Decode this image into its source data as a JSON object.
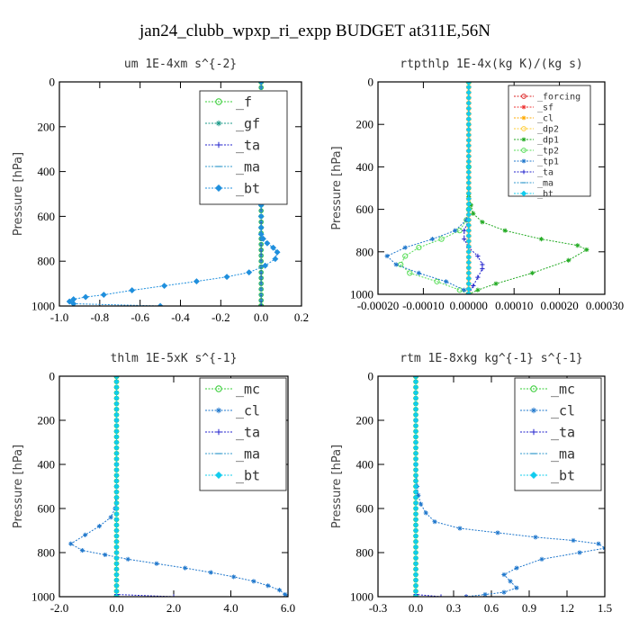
{
  "figure_title": "jan24_clubb_wpxp_ri_expp  BUDGET at311E,56N",
  "chart_data": [
    {
      "type": "line",
      "title": "um  1E-4xm s^{-2}",
      "ylabel": "Pressure [hPa]",
      "xlim": [
        -1.0,
        0.2
      ],
      "ylim": [
        1000,
        0
      ],
      "xticks": [
        -1.0,
        -0.8,
        -0.6,
        -0.4,
        -0.2,
        0.0,
        0.2
      ],
      "xtick_labels": [
        "-1.0",
        "-0.8",
        "-0.6",
        "-0.4",
        "-0.2",
        "0.0",
        "0.2"
      ],
      "yticks": [
        0,
        200,
        400,
        600,
        800,
        1000
      ],
      "ytick_labels": [
        "0",
        "200",
        "400",
        "600",
        "800",
        "1000"
      ],
      "legend_position": "top-right",
      "series": [
        {
          "name": "_f",
          "color": "#33cc33",
          "marker": "circle",
          "x": [
            0.0,
            0.0
          ],
          "y": [
            0,
            1000
          ]
        },
        {
          "name": "_gf",
          "color": "#1a9988",
          "marker": "star",
          "x": [
            0.0,
            0.0
          ],
          "y": [
            0,
            1000
          ]
        },
        {
          "name": "_ta",
          "color": "#2222cc",
          "marker": "plus",
          "x": [
            0.0,
            0.0
          ],
          "y": [
            0,
            1000
          ]
        },
        {
          "name": "_ma",
          "color": "#3399cc",
          "marker": "dash",
          "x": [
            0.0,
            0.0
          ],
          "y": [
            0,
            1000
          ]
        },
        {
          "name": "_bt",
          "color": "#1f8fdd",
          "marker": "diamond",
          "x": [
            0.0,
            0.0,
            0.0,
            0.0,
            0.0,
            0.0,
            0.0,
            0.0,
            0.0,
            0.0,
            0.01,
            0.03,
            0.06,
            0.08,
            0.07,
            0.02,
            -0.06,
            -0.17,
            -0.32,
            -0.48,
            -0.64,
            -0.78,
            -0.87,
            -0.93,
            -0.95,
            -0.93,
            -0.5
          ],
          "y": [
            0,
            100,
            200,
            300,
            400,
            500,
            550,
            600,
            650,
            680,
            700,
            720,
            740,
            760,
            790,
            820,
            850,
            870,
            890,
            910,
            930,
            950,
            960,
            970,
            980,
            990,
            1000
          ]
        }
      ]
    },
    {
      "type": "line",
      "title": "rtpthlp  1E-4x(kg K)/(kg s)",
      "ylabel": "Pressure [hPa]",
      "xlim": [
        -0.0002,
        0.0003
      ],
      "ylim": [
        1000,
        0
      ],
      "xticks": [
        -0.0002,
        -0.0001,
        0.0,
        0.0001,
        0.0002,
        0.0003
      ],
      "xtick_labels": [
        "-0.00020",
        "-0.00010",
        "0.00000",
        "0.00010",
        "0.00020",
        "0.00030"
      ],
      "yticks": [
        0,
        200,
        400,
        600,
        800,
        1000
      ],
      "ytick_labels": [
        "0",
        "200",
        "400",
        "600",
        "800",
        "1000"
      ],
      "legend_position": "top-right",
      "series": [
        {
          "name": "_forcing",
          "color": "#dd2222",
          "marker": "circle",
          "x": [
            0.0,
            0.0
          ],
          "y": [
            0,
            1000
          ]
        },
        {
          "name": "_sf",
          "color": "#ee3333",
          "marker": "star",
          "x": [
            0.0,
            0.0
          ],
          "y": [
            0,
            1000
          ]
        },
        {
          "name": "_cl",
          "color": "#ffaa00",
          "marker": "star",
          "x": [
            0.0,
            0.0
          ],
          "y": [
            0,
            1000
          ]
        },
        {
          "name": "_dp2",
          "color": "#ffcc33",
          "marker": "circle",
          "x": [
            0.0,
            0.0
          ],
          "y": [
            0,
            1000
          ]
        },
        {
          "name": "_dp1",
          "color": "#22aa22",
          "marker": "star",
          "x": [
            0.0,
            0.0,
            0.0,
            0.0,
            0.0,
            5e-06,
            1e-05,
            3e-05,
            8e-05,
            0.00016,
            0.00024,
            0.00026,
            0.00022,
            0.00014,
            6e-05,
            2e-05,
            0.0
          ],
          "y": [
            0,
            200,
            400,
            500,
            540,
            580,
            620,
            660,
            700,
            740,
            770,
            790,
            840,
            900,
            950,
            980,
            1000
          ]
        },
        {
          "name": "_tp2",
          "color": "#55dd55",
          "marker": "circle",
          "x": [
            0.0,
            0.0,
            0.0,
            -5e-06,
            -2e-05,
            -6e-05,
            -0.00011,
            -0.00014,
            -0.00015,
            -0.00013,
            -7e-05,
            -2e-05,
            0.0
          ],
          "y": [
            0,
            400,
            600,
            650,
            700,
            740,
            780,
            820,
            860,
            900,
            940,
            980,
            1000
          ]
        },
        {
          "name": "_tp1",
          "color": "#1f77cc",
          "marker": "star",
          "x": [
            0.0,
            0.0,
            0.0,
            -5e-06,
            -3e-05,
            -8e-05,
            -0.00014,
            -0.00018,
            -0.00016,
            -0.00011,
            -5e-05,
            -1e-05,
            0.0
          ],
          "y": [
            0,
            400,
            600,
            650,
            700,
            740,
            780,
            820,
            860,
            900,
            940,
            980,
            1000
          ]
        },
        {
          "name": "_ta",
          "color": "#2222cc",
          "marker": "plus",
          "x": [
            0.0,
            0.0,
            0.0,
            0.0,
            -1e-05,
            -1e-05,
            0.0,
            2e-05,
            3e-05,
            3e-05,
            2e-05,
            1e-05,
            0.0
          ],
          "y": [
            0,
            400,
            600,
            650,
            700,
            740,
            780,
            820,
            860,
            880,
            920,
            960,
            1000
          ]
        },
        {
          "name": "_ma",
          "color": "#3399cc",
          "marker": "dash",
          "x": [
            0.0,
            0.0
          ],
          "y": [
            0,
            1000
          ]
        },
        {
          "name": "_bt",
          "color": "#11ccee",
          "marker": "diamond",
          "x": [
            0.0,
            0.0
          ],
          "y": [
            0,
            1000
          ]
        }
      ]
    },
    {
      "type": "line",
      "title": "thlm  1E-5xK s^{-1}",
      "ylabel": "Pressure [hPa]",
      "xlim": [
        -2.0,
        6.0
      ],
      "ylim": [
        1000,
        0
      ],
      "xticks": [
        -2.0,
        0.0,
        2.0,
        4.0,
        6.0
      ],
      "xtick_labels": [
        "-2.0",
        "0.0",
        "2.0",
        "4.0",
        "6.0"
      ],
      "yticks": [
        0,
        200,
        400,
        600,
        800,
        1000
      ],
      "ytick_labels": [
        "0",
        "200",
        "400",
        "600",
        "800",
        "1000"
      ],
      "legend_position": "top-right",
      "series": [
        {
          "name": "_mc",
          "color": "#33cc33",
          "marker": "circle",
          "x": [
            0.0,
            0.0
          ],
          "y": [
            0,
            1000
          ]
        },
        {
          "name": "_cl",
          "color": "#1f77cc",
          "marker": "star",
          "x": [
            0.0,
            0.0,
            0.0,
            0.0,
            -0.05,
            -0.2,
            -0.6,
            -1.1,
            -1.6,
            -1.2,
            -0.4,
            0.4,
            1.4,
            2.4,
            3.3,
            4.1,
            4.8,
            5.3,
            5.7,
            5.9,
            6.0
          ],
          "y": [
            0,
            200,
            400,
            500,
            600,
            640,
            680,
            720,
            760,
            790,
            810,
            830,
            850,
            870,
            890,
            910,
            930,
            950,
            970,
            990,
            1000
          ]
        },
        {
          "name": "_ta",
          "color": "#2222cc",
          "marker": "plus",
          "x": [
            0.0,
            0.0,
            2.0,
            6.0
          ],
          "y": [
            0,
            990,
            1000,
            1000
          ]
        },
        {
          "name": "_ma",
          "color": "#3399cc",
          "marker": "dash",
          "x": [
            0.0,
            0.0
          ],
          "y": [
            0,
            1000
          ]
        },
        {
          "name": "_bt",
          "color": "#11ccee",
          "marker": "diamond",
          "x": [
            0.0,
            0.0
          ],
          "y": [
            0,
            1000
          ]
        }
      ]
    },
    {
      "type": "line",
      "title": "rtm  1E-8xkg kg^{-1} s^{-1}",
      "ylabel": "Pressure [hPa]",
      "xlim": [
        -0.3,
        1.5
      ],
      "ylim": [
        1000,
        0
      ],
      "xticks": [
        -0.3,
        0.0,
        0.3,
        0.6,
        0.9,
        1.2,
        1.5
      ],
      "xtick_labels": [
        "-0.3",
        "0.0",
        "0.3",
        "0.6",
        "0.9",
        "1.2",
        "1.5"
      ],
      "yticks": [
        0,
        200,
        400,
        600,
        800,
        1000
      ],
      "ytick_labels": [
        "0",
        "200",
        "400",
        "600",
        "800",
        "1000"
      ],
      "legend_position": "top-right",
      "series": [
        {
          "name": "_mc",
          "color": "#33cc33",
          "marker": "circle",
          "x": [
            0.0,
            0.0
          ],
          "y": [
            0,
            1000
          ]
        },
        {
          "name": "_cl",
          "color": "#1f77cc",
          "marker": "star",
          "x": [
            0.0,
            0.0,
            0.0,
            0.01,
            0.02,
            0.04,
            0.08,
            0.15,
            0.35,
            0.65,
            0.95,
            1.25,
            1.45,
            1.5,
            1.3,
            1.0,
            0.8,
            0.7,
            0.75,
            0.8,
            0.7,
            0.55,
            0.4
          ],
          "y": [
            0,
            200,
            400,
            500,
            540,
            580,
            620,
            660,
            690,
            710,
            730,
            745,
            760,
            780,
            800,
            830,
            870,
            900,
            930,
            960,
            980,
            990,
            1000
          ]
        },
        {
          "name": "_ta",
          "color": "#2222cc",
          "marker": "plus",
          "x": [
            0.0,
            0.0,
            0.2,
            0.4
          ],
          "y": [
            0,
            990,
            1000,
            1000
          ]
        },
        {
          "name": "_ma",
          "color": "#3399cc",
          "marker": "dash",
          "x": [
            0.0,
            0.0
          ],
          "y": [
            0,
            1000
          ]
        },
        {
          "name": "_bt",
          "color": "#11ccee",
          "marker": "diamond",
          "x": [
            0.0,
            0.0
          ],
          "y": [
            0,
            1000
          ]
        }
      ]
    }
  ]
}
